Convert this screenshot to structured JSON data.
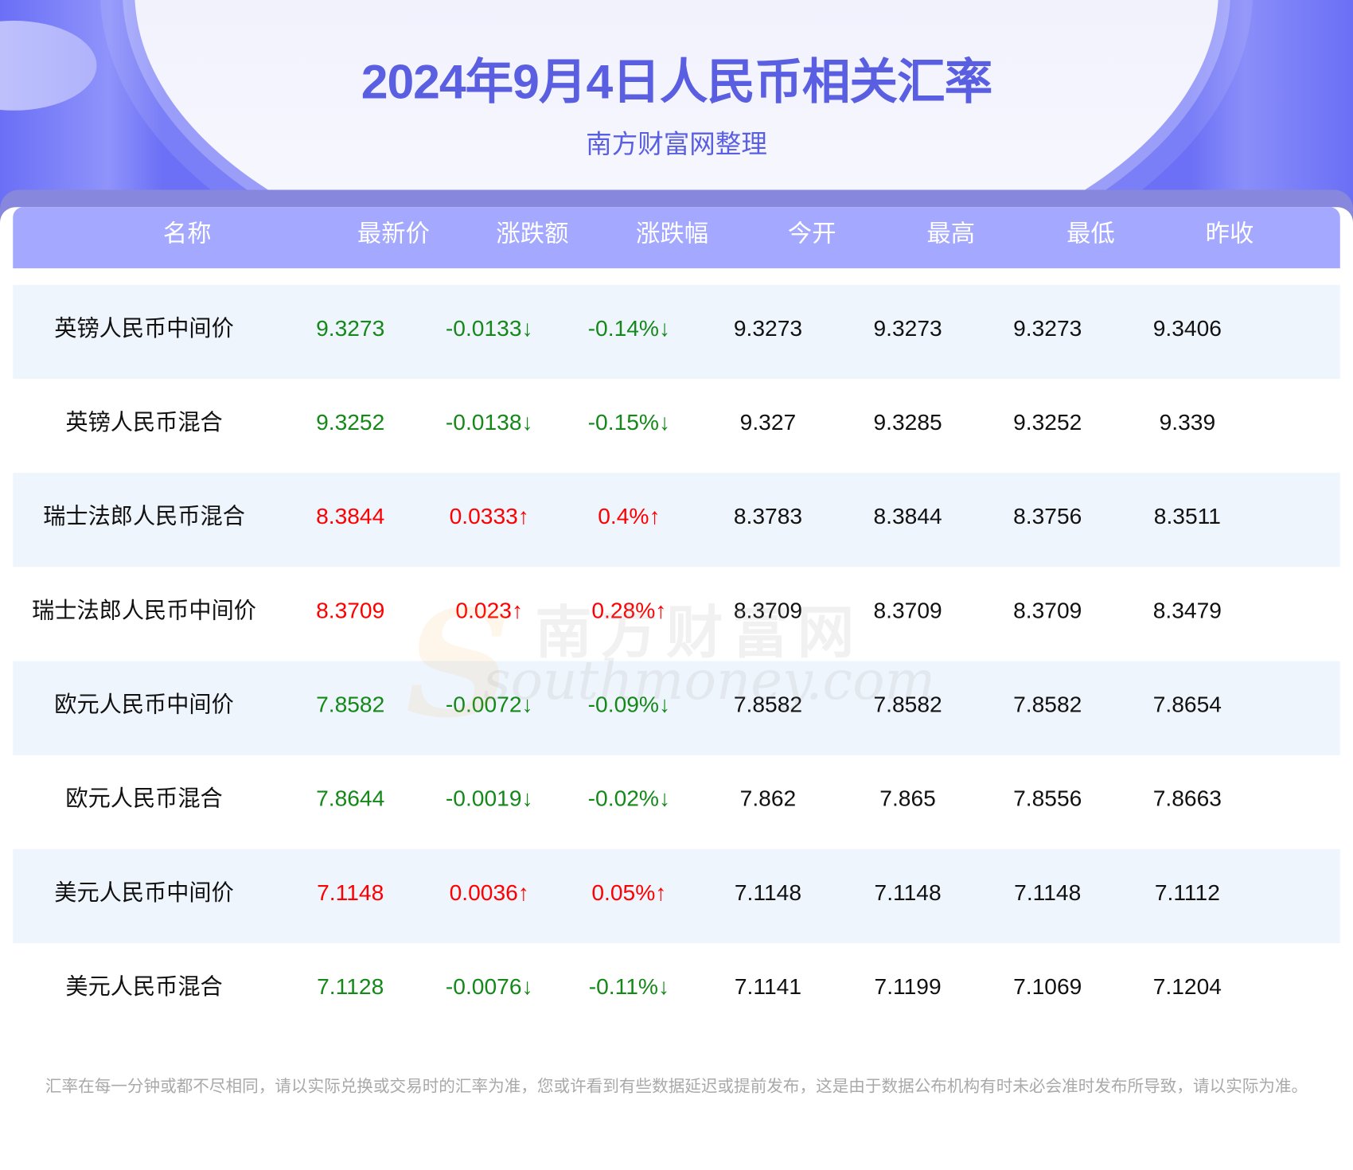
{
  "header": {
    "title": "2024年9月4日人民币相关汇率",
    "subtitle": "南方财富网整理"
  },
  "colors": {
    "accent": "#5a5fe2",
    "header_bg": "#a4a8fe",
    "up": "#ff0000",
    "down": "#14891a",
    "row_alt": "#eff5fd"
  },
  "table": {
    "columns": [
      "名称",
      "最新价",
      "涨跌额",
      "涨跌幅",
      "今开",
      "最高",
      "最低",
      "昨收"
    ],
    "rows": [
      {
        "trend": "down",
        "cells": [
          "英镑人民币中间价",
          "9.3273",
          "-0.0133↓",
          "-0.14%↓",
          "9.3273",
          "9.3273",
          "9.3273",
          "9.3406"
        ]
      },
      {
        "trend": "down",
        "cells": [
          "英镑人民币混合",
          "9.3252",
          "-0.0138↓",
          "-0.15%↓",
          "9.327",
          "9.3285",
          "9.3252",
          "9.339"
        ]
      },
      {
        "trend": "up",
        "cells": [
          "瑞士法郎人民币混合",
          "8.3844",
          "0.0333↑",
          "0.4%↑",
          "8.3783",
          "8.3844",
          "8.3756",
          "8.3511"
        ]
      },
      {
        "trend": "up",
        "cells": [
          "瑞士法郎人民币中间价",
          "8.3709",
          "0.023↑",
          "0.28%↑",
          "8.3709",
          "8.3709",
          "8.3709",
          "8.3479"
        ]
      },
      {
        "trend": "down",
        "cells": [
          "欧元人民币中间价",
          "7.8582",
          "-0.0072↓",
          "-0.09%↓",
          "7.8582",
          "7.8582",
          "7.8582",
          "7.8654"
        ]
      },
      {
        "trend": "down",
        "cells": [
          "欧元人民币混合",
          "7.8644",
          "-0.0019↓",
          "-0.02%↓",
          "7.862",
          "7.865",
          "7.8556",
          "7.8663"
        ]
      },
      {
        "trend": "up",
        "cells": [
          "美元人民币中间价",
          "7.1148",
          "0.0036↑",
          "0.05%↑",
          "7.1148",
          "7.1148",
          "7.1148",
          "7.1112"
        ]
      },
      {
        "trend": "down",
        "cells": [
          "美元人民币混合",
          "7.1128",
          "-0.0076↓",
          "-0.11%↓",
          "7.1141",
          "7.1199",
          "7.1069",
          "7.1204"
        ]
      }
    ]
  },
  "watermark": {
    "cn": "南方财富网",
    "en": "southmoney.com",
    "s": "S"
  },
  "footer": {
    "note": "汇率在每一分钟或都不尽相同，请以实际兑换或交易时的汇率为准，您或许看到有些数据延迟或提前发布，这是由于数据公布机构有时未必会准时发布所导致，请以实际为准。"
  }
}
